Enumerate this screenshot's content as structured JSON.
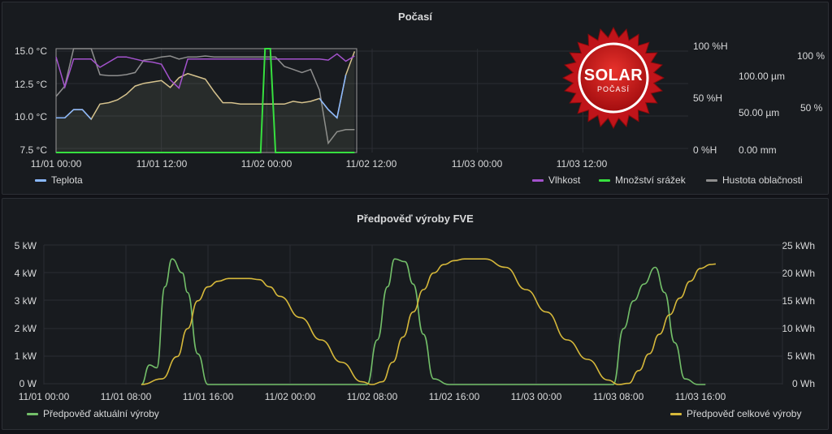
{
  "dashboard": {
    "panels": [
      {
        "title": "Počasí"
      },
      {
        "title": "Předpověď výroby FVE"
      }
    ]
  },
  "weather_panel": {
    "left_axis": [
      "15.0 °C",
      "12.5 °C",
      "10.0 °C",
      "7.5 °C"
    ],
    "right_axis_humidity": [
      "100 %H",
      "50 %H",
      "0 %H"
    ],
    "right_axis_precip": [
      "100.00 µm",
      "50.00 µm",
      "0.00 mm"
    ],
    "right_axis_cloud": [
      "100 %",
      "50 %"
    ],
    "x_ticks": [
      "11/01 00:00",
      "11/01 12:00",
      "11/02 00:00",
      "11/02 12:00",
      "11/03 00:00",
      "11/03 12:00"
    ],
    "legend_left": [
      {
        "label": "Teplota",
        "color": "#8ab8ff"
      }
    ],
    "legend_right": [
      {
        "label": "Vlhkost",
        "color": "#a352cc"
      },
      {
        "label": "Množství srážek",
        "color": "#37e03f"
      },
      {
        "label": "Hustota oblačnosti",
        "color": "#8e8e8e"
      }
    ]
  },
  "logo": {
    "line1": "SOLAR",
    "line2": "POČASÍ"
  },
  "fve_panel": {
    "left_axis": [
      "5 kW",
      "4 kW",
      "3 kW",
      "2 kW",
      "1 kW",
      "0 W"
    ],
    "right_axis": [
      "25 kWh",
      "20 kWh",
      "15 kWh",
      "10 kWh",
      "5 kWh",
      "0 Wh"
    ],
    "x_ticks": [
      "11/01 00:00",
      "11/01 08:00",
      "11/01 16:00",
      "11/02 00:00",
      "11/02 08:00",
      "11/02 16:00",
      "11/03 00:00",
      "11/03 08:00",
      "11/03 16:00"
    ],
    "legend_left": {
      "label": "Předpověď aktuální výroby",
      "color": "#73bf69"
    },
    "legend_right": {
      "label": "Předpověď celkové výroby",
      "color": "#d6b83a"
    }
  },
  "chart_data": [
    {
      "type": "line",
      "title": "Počasí",
      "x_unit": "hours since 11/01 00:00",
      "xlim": [
        0,
        72
      ],
      "series": [
        {
          "name": "Teplota",
          "axis": "°C",
          "ylim": [
            7.5,
            15.0
          ],
          "x": [
            0,
            1,
            2,
            3,
            4,
            5,
            6,
            7,
            8,
            9,
            10,
            11,
            12,
            13,
            14,
            15,
            16,
            17,
            18,
            19,
            20,
            21,
            22,
            23,
            24,
            25,
            26,
            27,
            28,
            29,
            30,
            31,
            32,
            33,
            34
          ],
          "values": [
            10.0,
            10.0,
            10.6,
            10.6,
            9.9,
            11.0,
            11.1,
            11.3,
            11.7,
            12.3,
            12.5,
            12.6,
            12.7,
            12.2,
            12.9,
            13.2,
            13.0,
            12.8,
            11.9,
            11.1,
            11.1,
            11.0,
            11.0,
            11.0,
            11.0,
            11.0,
            11.0,
            11.2,
            11.1,
            11.2,
            11.4,
            10.6,
            10.0,
            13.1,
            14.8
          ]
        },
        {
          "name": "Vlhkost",
          "axis": "%H",
          "ylim": [
            0,
            100
          ],
          "x": [
            0,
            1,
            2,
            3,
            4,
            5,
            6,
            7,
            8,
            9,
            10,
            11,
            12,
            13,
            14,
            15,
            16,
            17,
            18,
            19,
            20,
            21,
            22,
            23,
            24,
            25,
            26,
            27,
            28,
            29,
            30,
            31,
            32,
            33,
            34
          ],
          "values": [
            92,
            63,
            90,
            90,
            90,
            82,
            87,
            92,
            92,
            90,
            88,
            87,
            85,
            70,
            62,
            90,
            90,
            90,
            90,
            90,
            90,
            90,
            90,
            90,
            90,
            90,
            90,
            90,
            90,
            90,
            90,
            89,
            95,
            88,
            93
          ]
        },
        {
          "name": "Množství srážek",
          "axis": "µm",
          "ylim": [
            0,
            100
          ],
          "x": [
            0,
            23.3,
            23.8,
            24.4,
            25,
            34
          ],
          "values": [
            0,
            0,
            100,
            100,
            0,
            0
          ]
        },
        {
          "name": "Hustota oblačnosti",
          "axis": "%",
          "ylim": [
            0,
            100
          ],
          "x": [
            0,
            1,
            2,
            3,
            4,
            5,
            6,
            7,
            8,
            9,
            10,
            11,
            12,
            13,
            14,
            15,
            16,
            17,
            18,
            19,
            20,
            21,
            22,
            23,
            24,
            25,
            26,
            27,
            28,
            29,
            30,
            31,
            32,
            33,
            34
          ],
          "values": [
            54,
            64,
            100,
            100,
            100,
            75,
            74,
            74,
            75,
            77,
            89,
            90,
            92,
            93,
            90,
            92,
            92,
            93,
            92,
            92,
            92,
            92,
            92,
            92,
            92,
            92,
            83,
            80,
            77,
            80,
            60,
            9,
            20,
            22,
            22
          ]
        }
      ]
    },
    {
      "type": "line",
      "title": "Předpověď výroby FVE",
      "x_unit": "hours since 11/01 00:00",
      "xlim": [
        0,
        66.5
      ],
      "series": [
        {
          "name": "Předpověď aktuální výroby",
          "axis": "kW",
          "ylim": [
            0,
            5
          ],
          "x": [
            9.5,
            10.3,
            11.0,
            11.8,
            12.5,
            13.5,
            14.0,
            15.0,
            16.0,
            24.0,
            31.5,
            32.5,
            33.5,
            34.2,
            35.2,
            36.0,
            37.0,
            38.0,
            39.5,
            40.5,
            48.0,
            55.5,
            56.5,
            57.5,
            58.5,
            59.6,
            60.5,
            61.5,
            62.5,
            63.8,
            64.5
          ],
          "values": [
            0,
            0.7,
            0.6,
            3.5,
            4.5,
            4.0,
            3.3,
            1.1,
            0,
            0,
            0,
            1.6,
            3.5,
            4.5,
            4.4,
            3.6,
            1.8,
            0.2,
            0,
            0,
            0,
            0,
            2.0,
            3.0,
            3.6,
            4.2,
            3.3,
            1.5,
            0.2,
            0,
            0
          ]
        },
        {
          "name": "Předpověď celkové výroby",
          "axis": "kWh",
          "ylim": [
            0,
            25
          ],
          "x": [
            9.5,
            11.5,
            13,
            14,
            15,
            16,
            17,
            18,
            19,
            20,
            21,
            22,
            23,
            25,
            27,
            29,
            31,
            32,
            33,
            34,
            35,
            36,
            37,
            38,
            39,
            40,
            41,
            43,
            45,
            47,
            49,
            51,
            53,
            55,
            56,
            57,
            58,
            59,
            60,
            61,
            62,
            63,
            64,
            65,
            65.5
          ],
          "values": [
            0,
            1,
            5,
            10,
            15,
            17.5,
            18.5,
            19,
            19,
            19,
            18.8,
            17.5,
            15.8,
            12.0,
            8.0,
            4.0,
            0.5,
            0,
            0.5,
            4,
            8.5,
            13,
            17,
            20,
            21.5,
            22.2,
            22.5,
            22.5,
            21,
            17,
            13,
            8,
            4.5,
            0.8,
            0,
            0.2,
            2.5,
            5.5,
            9,
            12.5,
            15.5,
            18.5,
            20.8,
            21.5,
            21.6
          ]
        }
      ]
    }
  ]
}
